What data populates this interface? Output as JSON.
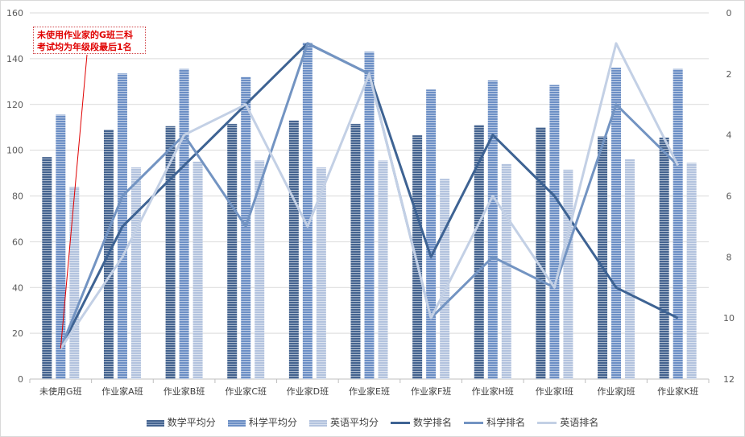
{
  "chart_data": {
    "type": "bar+line",
    "categories": [
      "未使用G班",
      "作业家A班",
      "作业家B班",
      "作业家C班",
      "作业家D班",
      "作业家E班",
      "作业家F班",
      "作业家H班",
      "作业家I班",
      "作业家J班",
      "作业家K班"
    ],
    "bar_series": [
      {
        "name": "数学平均分",
        "color": "#44638f",
        "values": [
          97,
          109,
          110.5,
          111.5,
          113,
          111.5,
          106.5,
          111,
          110,
          106,
          105.5
        ]
      },
      {
        "name": "科学平均分",
        "color": "#6c8fc5",
        "values": [
          115.5,
          133.5,
          135.5,
          132,
          147,
          143,
          126.5,
          130.5,
          128.5,
          136,
          135.5
        ]
      },
      {
        "name": "英语平均分",
        "color": "#b3c3de",
        "values": [
          84,
          92.5,
          95,
          95.5,
          92.5,
          95.5,
          87.5,
          94,
          91.5,
          96,
          94.5
        ]
      }
    ],
    "line_series": [
      {
        "name": "数学排名",
        "color": "#3e6393",
        "values": [
          11,
          7,
          5,
          3,
          1,
          2,
          8,
          4,
          6,
          9,
          10
        ]
      },
      {
        "name": "科学排名",
        "color": "#7394c2",
        "values": [
          11,
          6,
          4,
          7,
          1,
          2,
          10,
          8,
          9,
          3,
          5
        ]
      },
      {
        "name": "英语排名",
        "color": "#c3d0e5",
        "values": [
          11,
          8,
          4,
          3,
          7,
          2,
          10,
          6,
          9,
          1,
          5
        ]
      }
    ],
    "y_left": {
      "min": 0,
      "max": 160,
      "ticks": [
        "0",
        "20",
        "40",
        "60",
        "80",
        "100",
        "120",
        "140",
        "160"
      ]
    },
    "y_right": {
      "min": 0,
      "max": 12,
      "reversed": true,
      "ticks": [
        "0",
        "2",
        "4",
        "6",
        "8",
        "10",
        "12"
      ]
    },
    "grid": true,
    "legend_position": "bottom",
    "annotation": {
      "line1": "未使用作业家的G班三科",
      "line2": "考试均为年级段最后1名"
    }
  }
}
